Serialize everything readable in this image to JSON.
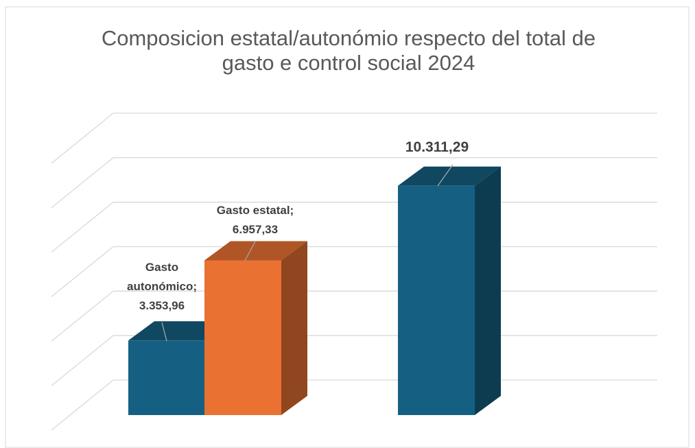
{
  "chart_data": {
    "type": "bar3d",
    "title": "Composicion estatal/autonómio respecto del total de gasto e control social 2024",
    "values": [
      3353.96,
      6957.33,
      10311.29
    ],
    "value_labels": [
      "Gasto autonómico; 3.353,96",
      "Gasto estatal; 6.957,33",
      "10.311,29"
    ],
    "colors": [
      "#156082",
      "#e97132",
      "#156082"
    ],
    "ylim": [
      0,
      12000
    ],
    "yticks": [
      0,
      2000,
      4000,
      6000,
      8000,
      10000,
      12000
    ],
    "grid": true
  }
}
